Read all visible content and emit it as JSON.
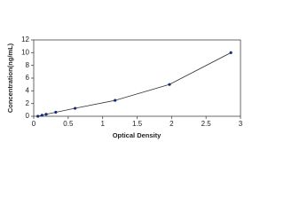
{
  "chart_data": {
    "type": "scatter",
    "x_label": "Optical Density",
    "y_label": "Concentration(ng/mL)",
    "x": [
      0.06,
      0.12,
      0.18,
      0.32,
      0.6,
      1.18,
      1.97,
      2.86
    ],
    "series": [
      {
        "color": "#1a2a7a",
        "values": [
          0,
          0.156,
          0.312,
          0.625,
          1.25,
          2.5,
          5,
          10
        ]
      }
    ],
    "xlim": [
      0,
      3
    ],
    "xticks": [
      0,
      0.5,
      1,
      1.5,
      2,
      2.5,
      3
    ],
    "ylim": [
      0,
      12
    ],
    "yticks": [
      0,
      2,
      4,
      6,
      8,
      10,
      12
    ],
    "fit_line": true
  }
}
